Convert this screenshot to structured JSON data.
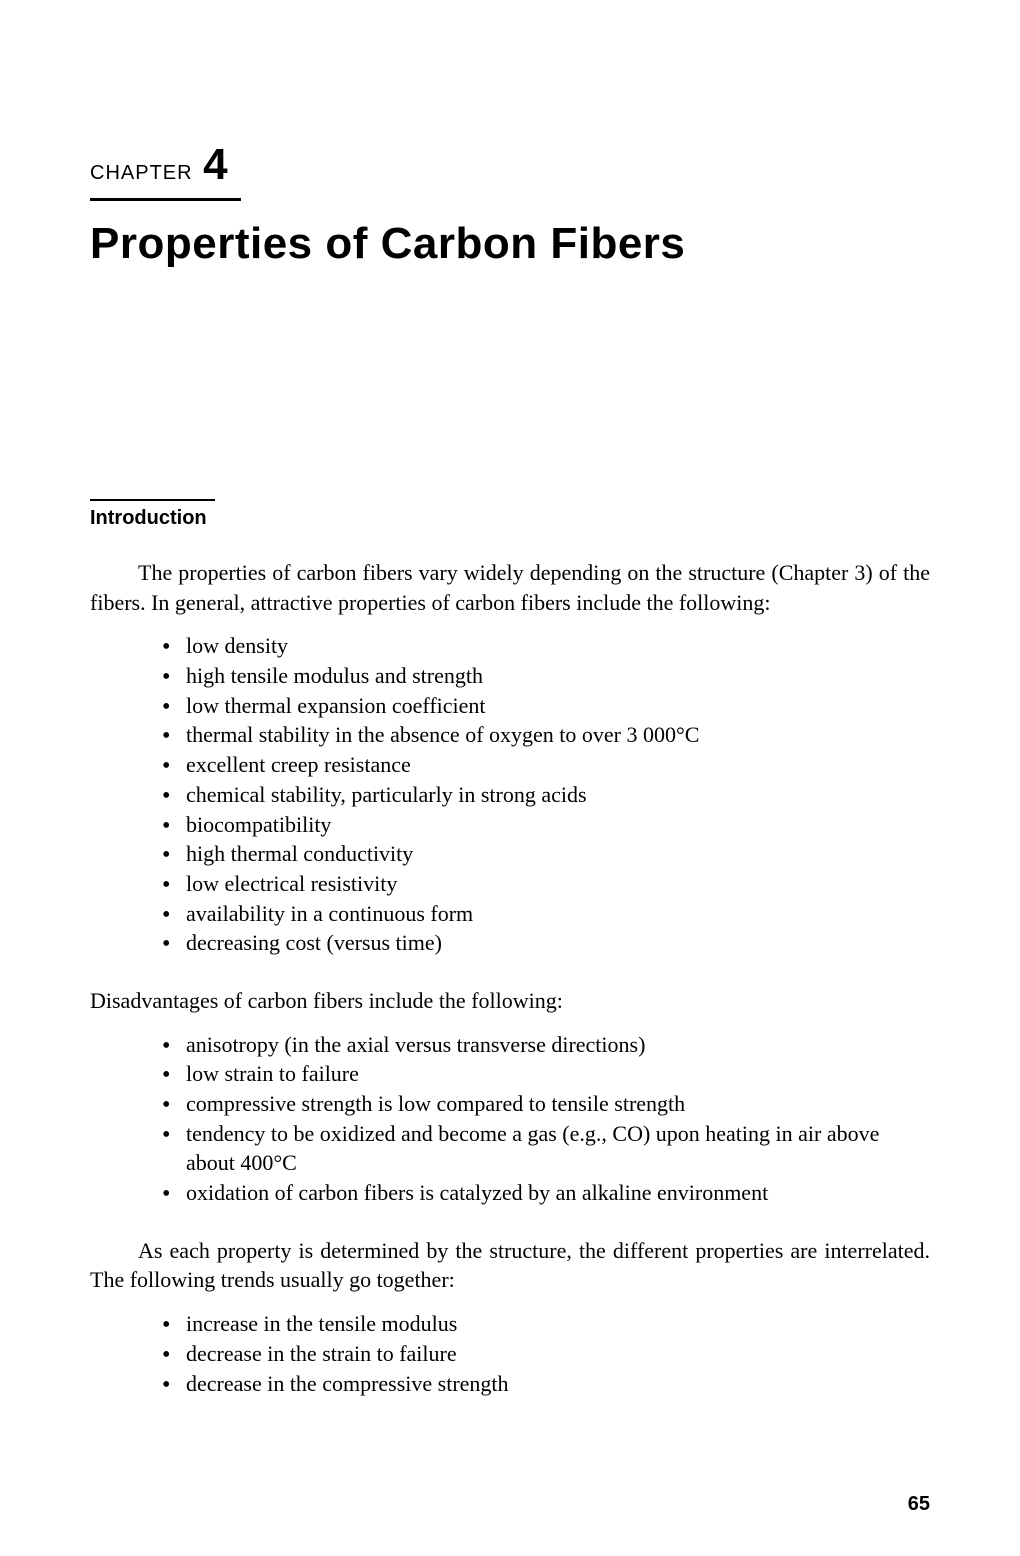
{
  "chapter": {
    "label": "CHAPTER",
    "number": "4",
    "title": "Properties of Carbon Fibers"
  },
  "section": {
    "heading": "Introduction"
  },
  "paragraphs": {
    "intro": "The properties of carbon fibers vary widely depending on the structure (Chapter 3) of the fibers. In general, attractive properties of carbon fibers include the following:",
    "disadvantages_lead": "Disadvantages of carbon fibers include the following:",
    "interrelated": "As each property is determined by the structure, the different properties are interrelated. The following trends usually go together:"
  },
  "advantages": [
    "low density",
    "high tensile modulus and strength",
    "low thermal expansion coefficient",
    "thermal stability in the absence of oxygen to over 3 000°C",
    "excellent creep resistance",
    "chemical stability, particularly in strong acids",
    "biocompatibility",
    "high thermal conductivity",
    "low electrical resistivity",
    "availability in a continuous form",
    "decreasing cost (versus time)"
  ],
  "disadvantages": [
    "anisotropy (in the axial versus transverse directions)",
    "low strain to failure",
    "compressive strength is low compared to tensile strength",
    "tendency to be oxidized and become a gas (e.g., CO) upon heating in air above about 400°C",
    "oxidation of carbon fibers is catalyzed by an alkaline environment"
  ],
  "trends": [
    "increase in the tensile modulus",
    "decrease in the strain to failure",
    "decrease in the compressive strength"
  ],
  "page_number": "65"
}
